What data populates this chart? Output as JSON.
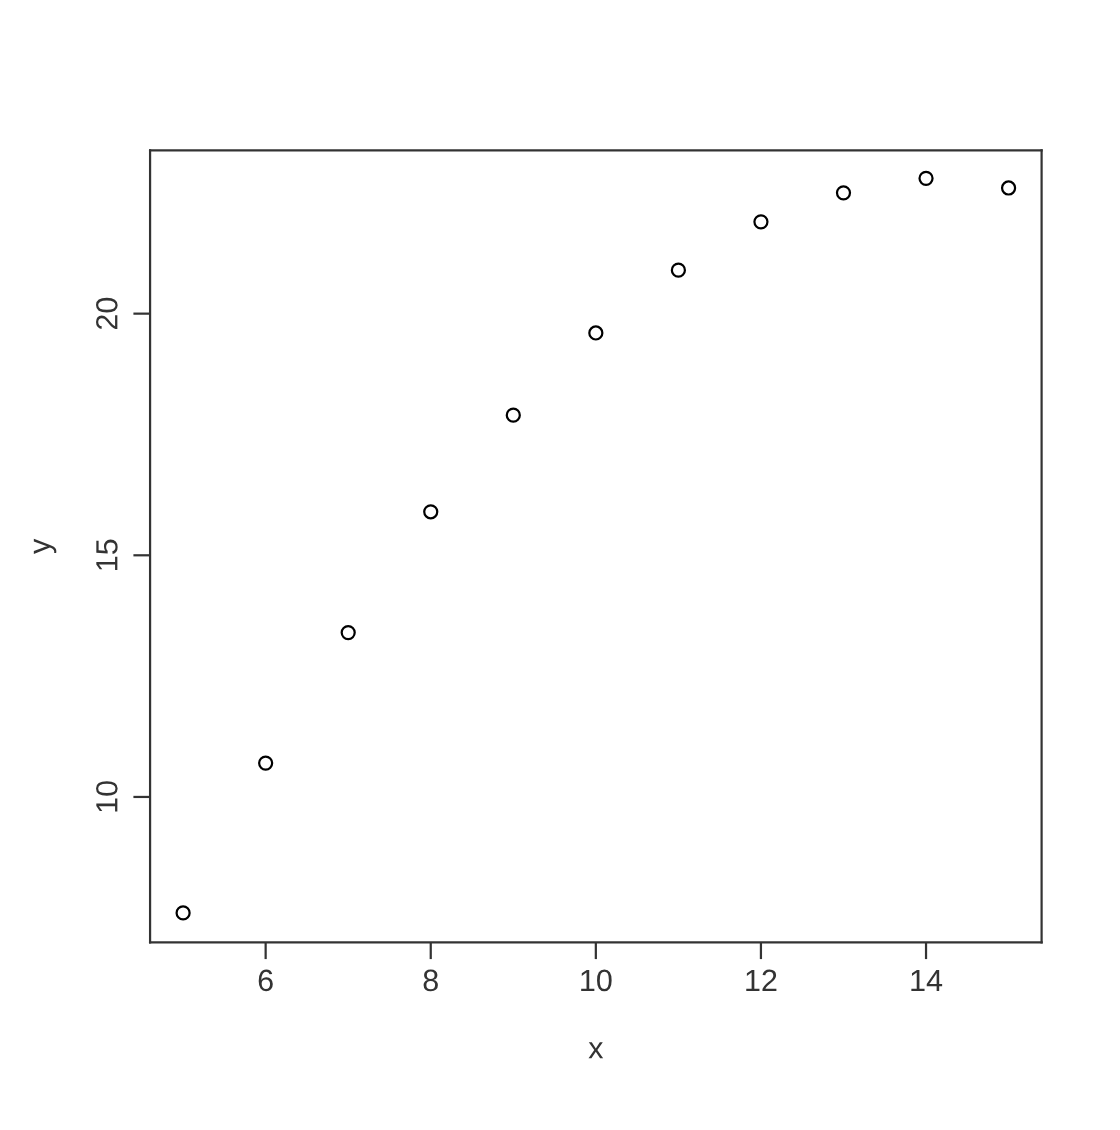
{
  "chart_data": {
    "type": "scatter",
    "xlabel": "x",
    "ylabel": "y",
    "x": [
      5,
      6,
      7,
      8,
      9,
      10,
      11,
      12,
      13,
      14,
      15
    ],
    "series": [
      {
        "color": "#000000",
        "values": [
          7.6,
          10.7,
          13.4,
          15.9,
          17.9,
          19.6,
          20.9,
          21.9,
          22.5,
          22.8,
          22.6
        ]
      }
    ],
    "xlim": [
      4.6,
      15.4
    ],
    "ylim": [
      6.99,
      23.38
    ],
    "xticks": [
      6,
      8,
      10,
      12,
      14
    ],
    "yticks": [
      10,
      15,
      20
    ],
    "marker": "circle",
    "grid": false,
    "legend": false
  }
}
